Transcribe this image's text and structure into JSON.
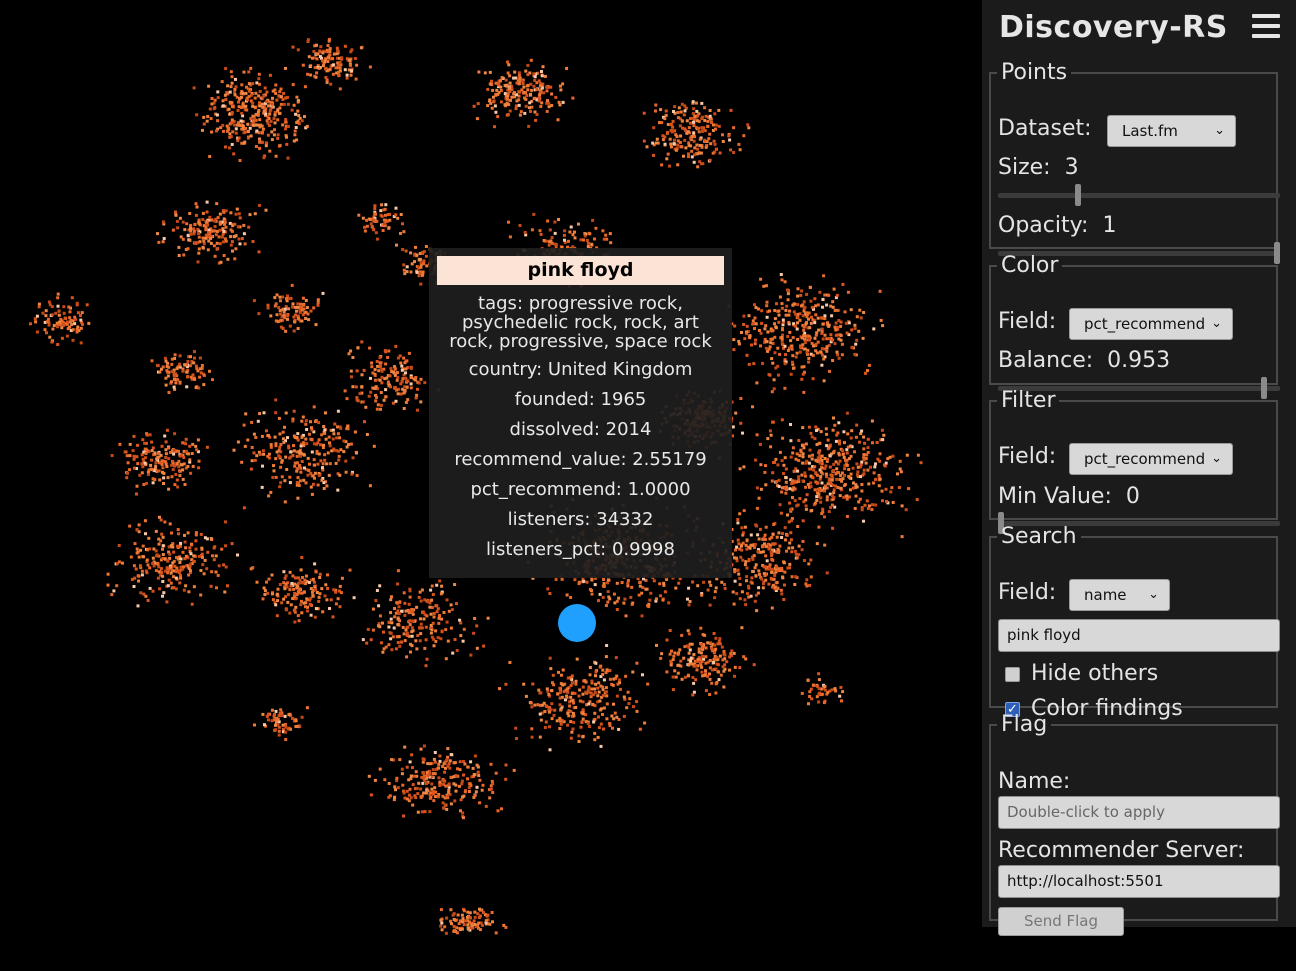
{
  "app": {
    "title": "Discovery-RS"
  },
  "tooltip": {
    "title": "pink floyd",
    "tags": "tags: progressive rock, psychedelic rock, rock, art rock, progressive, space rock",
    "rows": [
      "country: United Kingdom",
      "founded: 1965",
      "dissolved: 2014",
      "recommend_value: 2.55179",
      "pct_recommend: 1.0000",
      "listeners: 34332",
      "listeners_pct: 0.9998"
    ]
  },
  "colors": {
    "point_base": "#e8692a",
    "point_highlight": "#f7c9a8",
    "marker": "#1fa0ff",
    "panel_bg": "#1b1b1b"
  },
  "points": {
    "legend": "Points",
    "dataset_label": "Dataset:",
    "dataset_value": "Last.fm",
    "size_label": "Size:",
    "size_value": "3",
    "size_level": 0.28,
    "opacity_label": "Opacity:",
    "opacity_value": "1",
    "opacity_level": 1.0
  },
  "color": {
    "legend": "Color",
    "field_label": "Field:",
    "field_value": "pct_recommend",
    "balance_label": "Balance:",
    "balance_value": "0.953",
    "balance_level": 0.953
  },
  "filter": {
    "legend": "Filter",
    "field_label": "Field:",
    "field_value": "pct_recommend",
    "min_label": "Min Value:",
    "min_value": "0",
    "min_level": 0
  },
  "search": {
    "legend": "Search",
    "field_label": "Field:",
    "field_value": "name",
    "query": "pink floyd",
    "hide_others_label": "Hide others",
    "hide_others_checked": false,
    "color_findings_label": "Color findings",
    "color_findings_checked": true
  },
  "flag": {
    "legend": "Flag",
    "name_label": "Name:",
    "name_placeholder": "Double-click to apply",
    "server_label": "Recommender Server:",
    "server_value": "http://localhost:5501",
    "send_label": "Send Flag"
  }
}
